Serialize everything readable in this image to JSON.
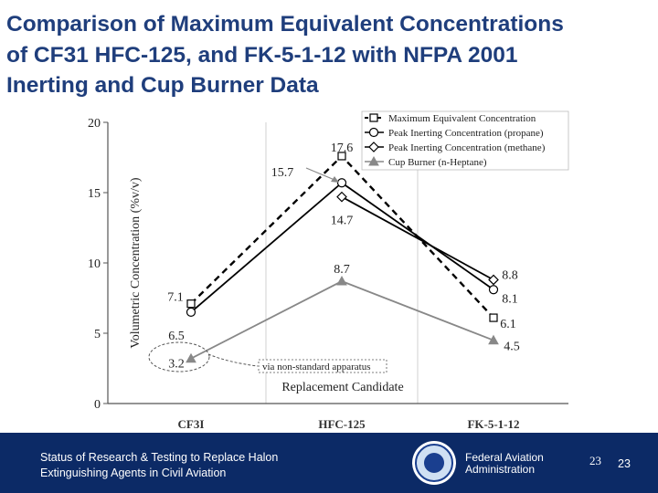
{
  "slide": {
    "title_lines": [
      "Comparison of Maximum Equivalent Concentrations",
      "of CF31 HFC-125, and FK-5-1-12 with NFPA 2001",
      "Inerting and Cup Burner Data"
    ]
  },
  "chart_data": {
    "type": "line",
    "categories": [
      "CF3I",
      "HFC-125",
      "FK-5-1-12"
    ],
    "ylabel": "Volumetric Concentration (%v/v)",
    "xlabel": "Replacement Candidate",
    "ylim": [
      0,
      20
    ],
    "yticks": [
      "0",
      "5",
      "10",
      "15",
      "20"
    ],
    "grid": "vertical",
    "legend_position": "top-right",
    "series": [
      {
        "name": "Maximum Equivalent Concentration",
        "values": [
          7.1,
          17.6,
          6.1
        ],
        "labels": [
          "7.1",
          "17.6",
          "6.1"
        ],
        "color": "#000000",
        "marker": "square-open",
        "dash": "dashed"
      },
      {
        "name": "Peak Inerting Concentration (propane)",
        "values": [
          6.5,
          15.7,
          8.1
        ],
        "labels": [
          "6.5",
          "15.7",
          "8.1"
        ],
        "color": "#000000",
        "marker": "circle-open",
        "dash": "solid"
      },
      {
        "name": "Peak Inerting Concentration (methane)",
        "values": [
          null,
          14.7,
          8.8
        ],
        "labels": [
          "",
          "14.7",
          "8.8"
        ],
        "color": "#000000",
        "marker": "diamond-open",
        "dash": "solid"
      },
      {
        "name": "Cup Burner (n-Heptane)",
        "values": [
          3.2,
          8.7,
          4.5
        ],
        "labels": [
          "3.2",
          "8.7",
          "4.5"
        ],
        "color": "#888888",
        "marker": "triangle-filled",
        "dash": "solid"
      }
    ],
    "annotations": [
      {
        "text": "via non-standard apparatus",
        "target": "CF3I Cup Burner point"
      }
    ]
  },
  "footer": {
    "lines": [
      "Status of Research & Testing to Replace Halon",
      "Extinguishing Agents in Civil Aviation"
    ],
    "org_lines": [
      "Federal Aviation",
      "Administration"
    ],
    "page_number_a": "23",
    "page_number_b": "23"
  },
  "colors": {
    "title": "#1f3e7c",
    "footer_bg": "#0c2a66",
    "footer_text": "#ffffff"
  }
}
